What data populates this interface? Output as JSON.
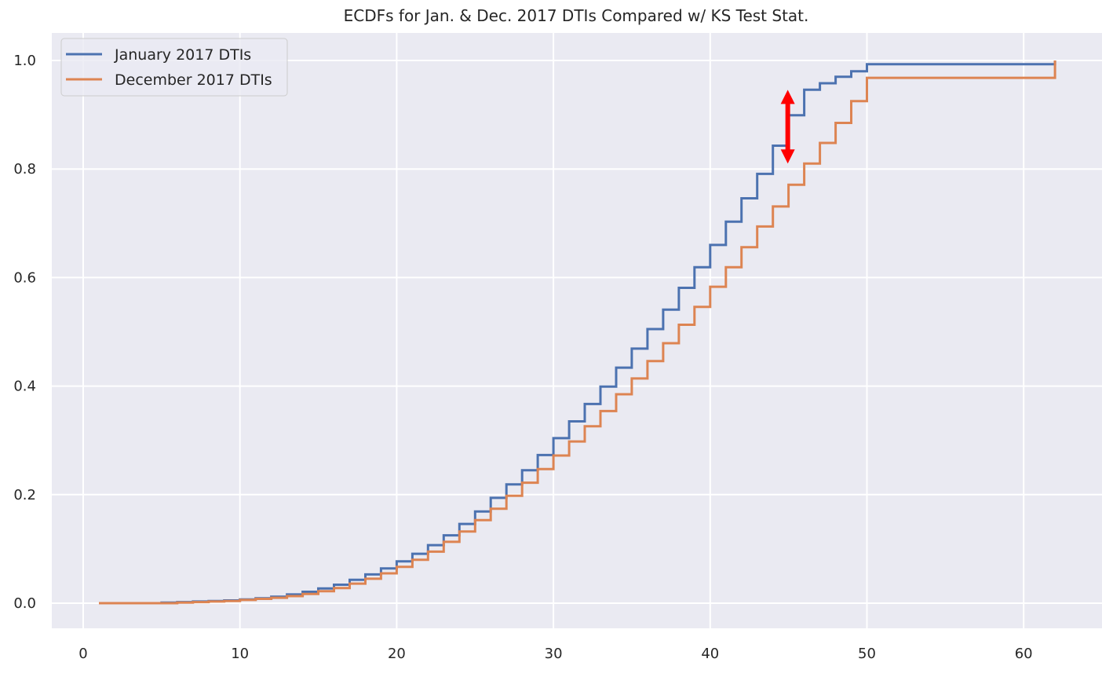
{
  "chart_data": {
    "type": "line",
    "title": "ECDFs for Jan. & Dec. 2017 DTIs Compared w/ KS Test Stat.",
    "xlabel": "",
    "ylabel": "",
    "xlim": [
      -1,
      65
    ],
    "ylim": [
      -0.05,
      1.05
    ],
    "x_ticks": [
      0,
      10,
      20,
      30,
      40,
      50,
      60
    ],
    "y_ticks": [
      0.0,
      0.2,
      0.4,
      0.6,
      0.8,
      1.0
    ],
    "x_tick_labels": [
      "0",
      "10",
      "20",
      "30",
      "40",
      "50",
      "60"
    ],
    "y_tick_labels": [
      "0.0",
      "0.2",
      "0.4",
      "0.6",
      "0.8",
      "1.0"
    ],
    "grid": true,
    "legend_position": "top-left",
    "step": true,
    "x": [
      1,
      2,
      3,
      4,
      5,
      6,
      7,
      8,
      9,
      10,
      11,
      12,
      13,
      14,
      15,
      16,
      17,
      18,
      19,
      20,
      21,
      22,
      23,
      24,
      25,
      26,
      27,
      28,
      29,
      30,
      31,
      32,
      33,
      34,
      35,
      36,
      37,
      38,
      39,
      40,
      41,
      42,
      43,
      44,
      45,
      46,
      47,
      48,
      49,
      50,
      62
    ],
    "series": [
      {
        "name": "January 2017 DTIs",
        "color": "#4c72b0",
        "values": [
          0,
          0,
          0,
          0,
          0.001,
          0.002,
          0.003,
          0.004,
          0.005,
          0.007,
          0.009,
          0.012,
          0.016,
          0.021,
          0.027,
          0.034,
          0.043,
          0.053,
          0.064,
          0.077,
          0.091,
          0.107,
          0.125,
          0.146,
          0.169,
          0.194,
          0.219,
          0.245,
          0.273,
          0.304,
          0.335,
          0.367,
          0.399,
          0.434,
          0.469,
          0.505,
          0.541,
          0.581,
          0.619,
          0.66,
          0.703,
          0.746,
          0.791,
          0.843,
          0.899,
          0.946,
          0.958,
          0.97,
          0.98,
          0.993,
          1.0
        ]
      },
      {
        "name": "December 2017 DTIs",
        "color": "#dd8452",
        "values": [
          0,
          0,
          0,
          0,
          0,
          0.001,
          0.002,
          0.003,
          0.004,
          0.006,
          0.008,
          0.01,
          0.013,
          0.017,
          0.022,
          0.028,
          0.036,
          0.045,
          0.055,
          0.067,
          0.08,
          0.095,
          0.113,
          0.132,
          0.153,
          0.174,
          0.198,
          0.222,
          0.247,
          0.272,
          0.298,
          0.326,
          0.354,
          0.385,
          0.414,
          0.446,
          0.479,
          0.513,
          0.546,
          0.583,
          0.619,
          0.656,
          0.694,
          0.731,
          0.771,
          0.81,
          0.848,
          0.885,
          0.925,
          0.968,
          1.0
        ]
      }
    ],
    "annotations": [
      {
        "type": "double-arrow",
        "x": 45,
        "y_start": 0.81,
        "y_end": 0.946,
        "color": "#ff0000"
      }
    ]
  }
}
